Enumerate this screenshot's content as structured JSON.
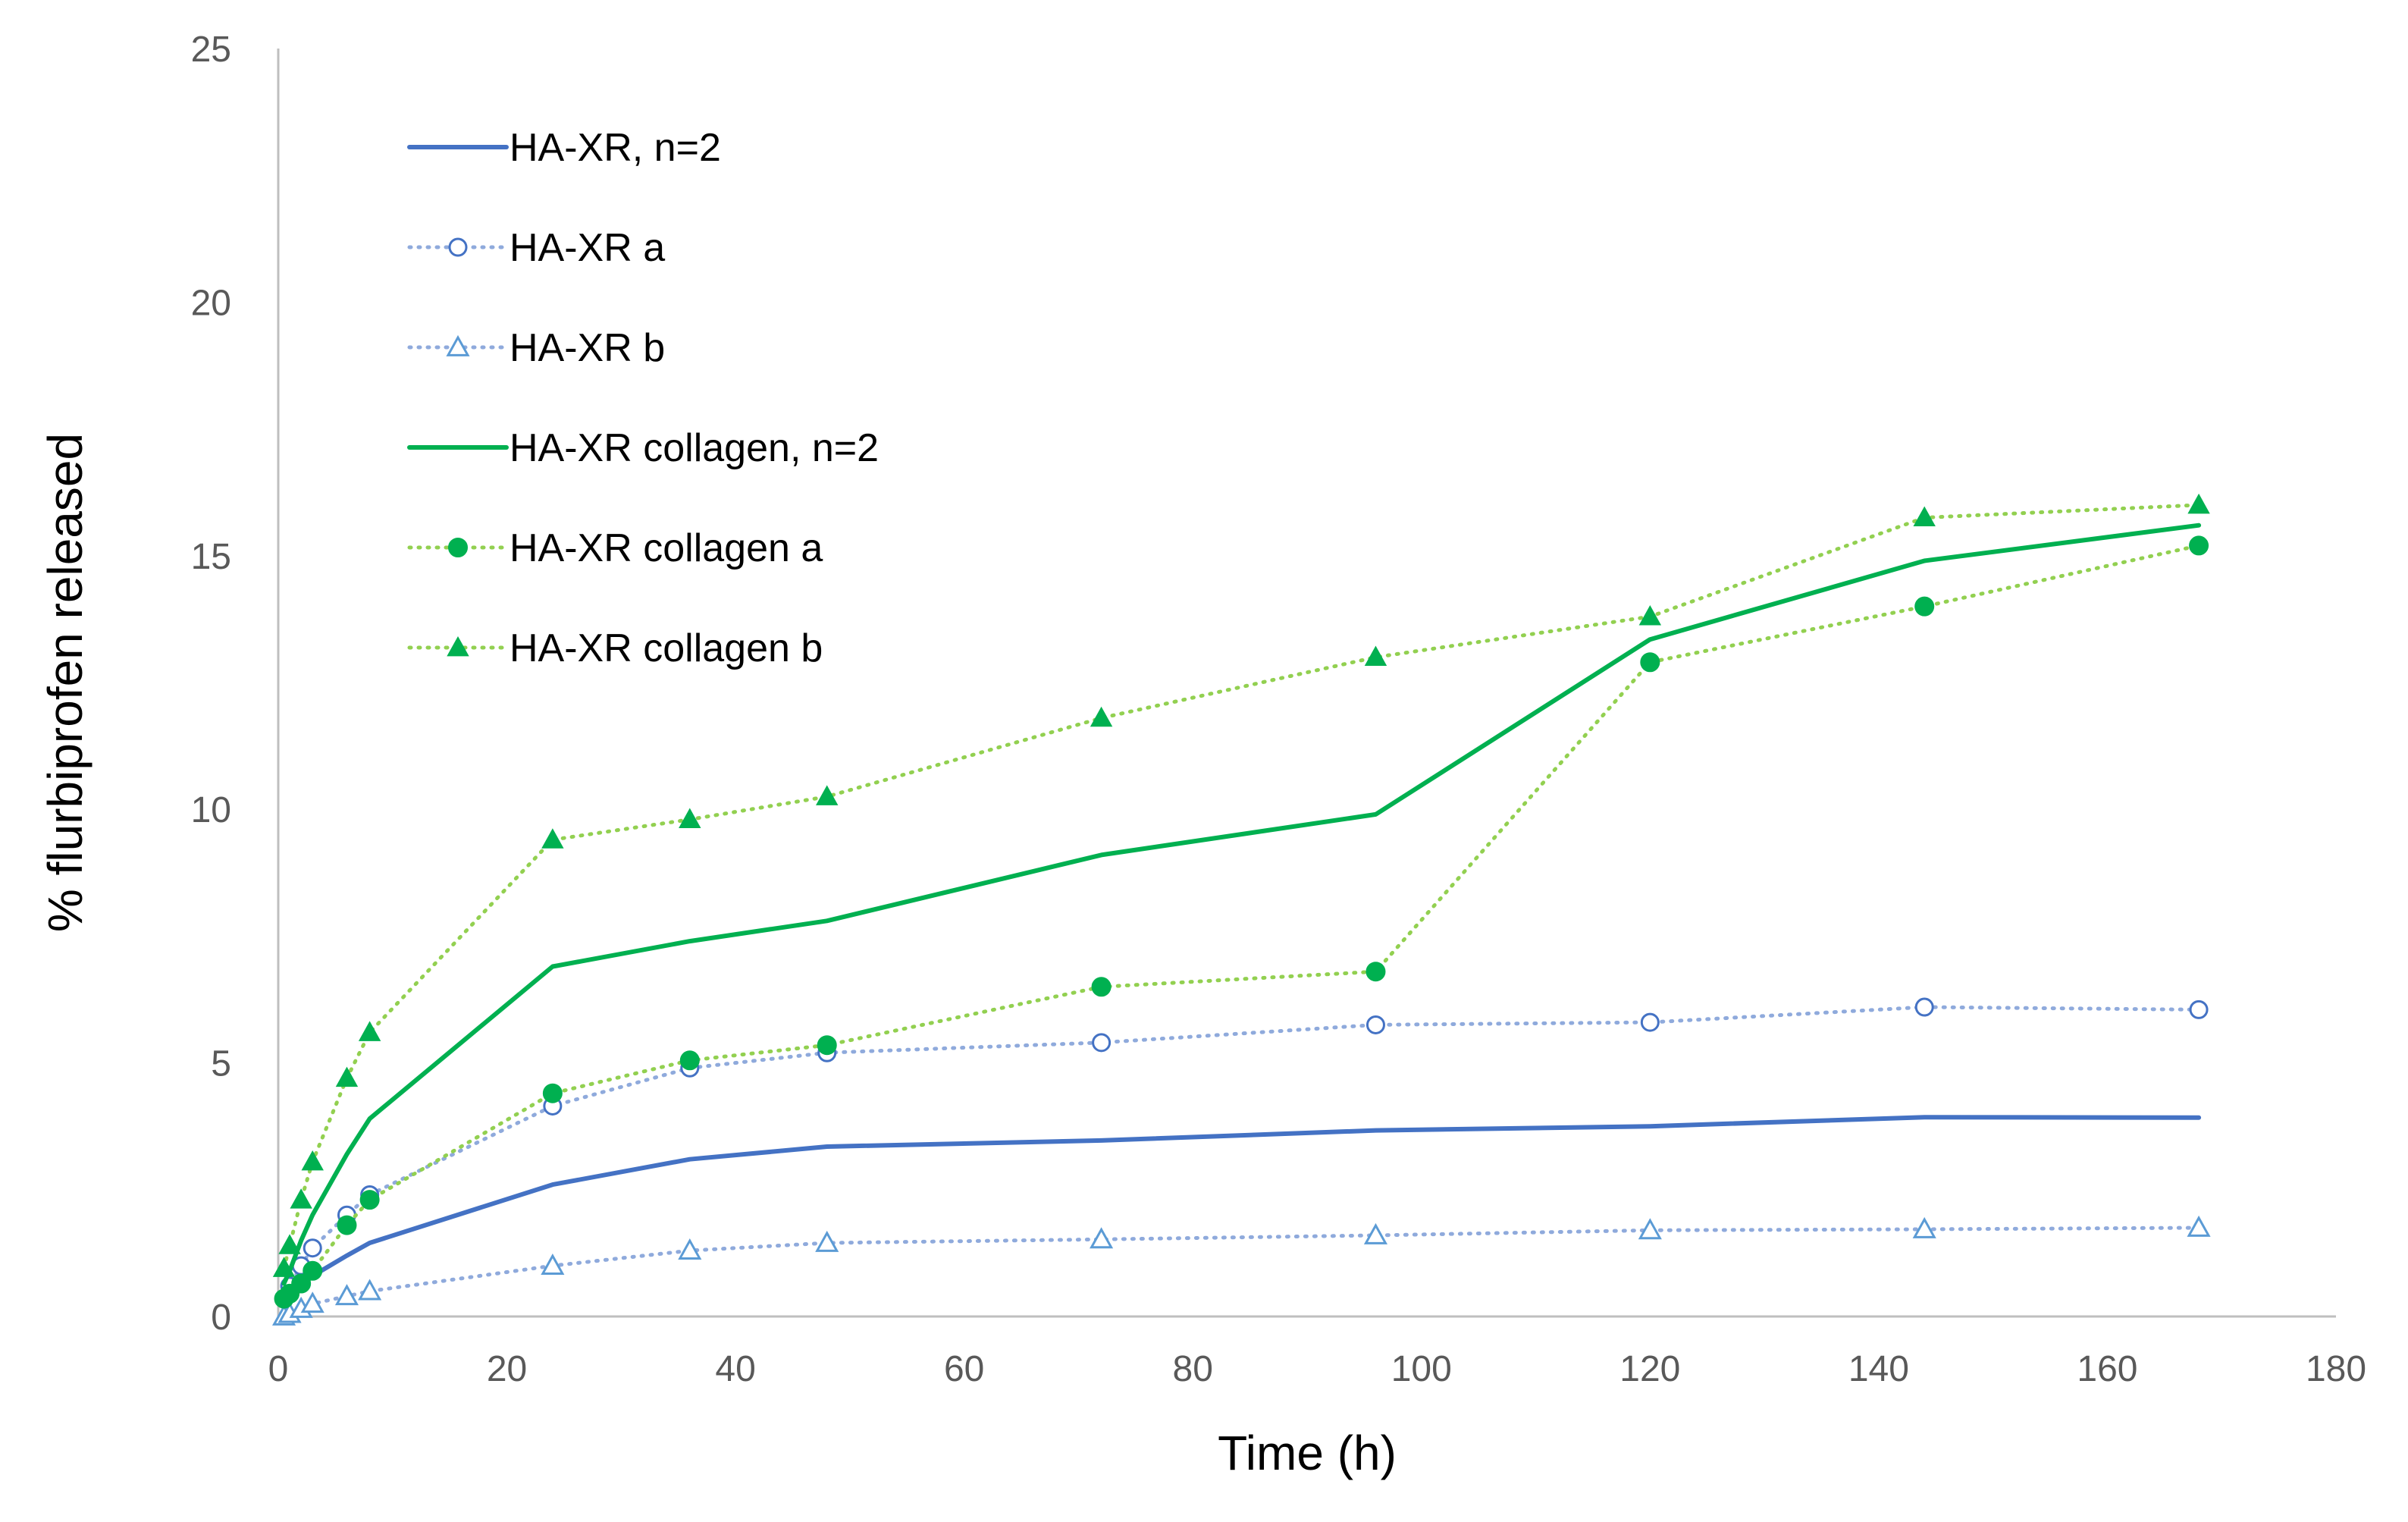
{
  "chart_data": {
    "type": "line",
    "xlabel": "Time (h)",
    "ylabel": "% flurbiprofen released",
    "xlim": [
      0,
      180
    ],
    "ylim": [
      0,
      25
    ],
    "x_ticks": [
      0,
      20,
      40,
      60,
      80,
      100,
      120,
      140,
      160,
      180
    ],
    "y_ticks": [
      0,
      5,
      10,
      15,
      20,
      25
    ],
    "grid": false,
    "legend_position": "top-left",
    "series": [
      {
        "name": "HA-XR, n=2",
        "style": "solid",
        "marker": "none",
        "color": "#4472C4",
        "x": [
          0.5,
          1,
          2,
          3,
          6,
          8,
          24,
          36,
          48,
          72,
          96,
          120,
          144,
          168
        ],
        "y": [
          0.2,
          0.4,
          0.6,
          0.8,
          1.2,
          1.45,
          2.6,
          3.1,
          3.35,
          3.47,
          3.67,
          3.75,
          3.93,
          3.92
        ]
      },
      {
        "name": "HA-XR a",
        "style": "dotted",
        "marker": "circle-open",
        "color": "#8FAADC",
        "marker_color": "#4472C4",
        "x": [
          0.5,
          1,
          2,
          3,
          6,
          8,
          24,
          36,
          48,
          72,
          96,
          120,
          144,
          168
        ],
        "y": [
          0.35,
          0.6,
          1.0,
          1.35,
          2.0,
          2.4,
          4.15,
          4.9,
          5.2,
          5.4,
          5.75,
          5.8,
          6.1,
          6.05
        ]
      },
      {
        "name": "HA-XR b",
        "style": "dotted",
        "marker": "triangle-open",
        "color": "#8FAADC",
        "marker_color": "#5B9BD5",
        "x": [
          0.5,
          1,
          2,
          3,
          6,
          8,
          24,
          36,
          48,
          72,
          96,
          120,
          144,
          168
        ],
        "y": [
          0.0,
          0.05,
          0.15,
          0.25,
          0.4,
          0.5,
          1.0,
          1.3,
          1.45,
          1.52,
          1.6,
          1.7,
          1.72,
          1.75
        ]
      },
      {
        "name": "HA-XR collagen, n=2",
        "style": "solid",
        "marker": "none",
        "color": "#00B050",
        "x": [
          0.5,
          1,
          2,
          3,
          6,
          8,
          24,
          36,
          48,
          72,
          96,
          120,
          144,
          168
        ],
        "y": [
          0.65,
          0.9,
          1.5,
          2.0,
          3.2,
          3.9,
          6.9,
          7.4,
          7.8,
          9.1,
          9.9,
          13.35,
          14.9,
          15.6
        ]
      },
      {
        "name": "HA-XR collagen a",
        "style": "dotted",
        "marker": "circle-filled",
        "color": "#92D050",
        "marker_color": "#00B050",
        "x": [
          0.5,
          1,
          2,
          3,
          6,
          8,
          24,
          36,
          48,
          72,
          96,
          120,
          144,
          168
        ],
        "y": [
          0.35,
          0.45,
          0.65,
          0.9,
          1.8,
          2.3,
          4.4,
          5.05,
          5.35,
          6.5,
          6.8,
          12.9,
          14.0,
          15.2
        ]
      },
      {
        "name": "HA-XR collagen b",
        "style": "dotted",
        "marker": "triangle-filled",
        "color": "#92D050",
        "marker_color": "#00B050",
        "x": [
          0.5,
          1,
          2,
          3,
          6,
          8,
          24,
          36,
          48,
          72,
          96,
          120,
          144,
          168
        ],
        "y": [
          0.95,
          1.4,
          2.3,
          3.05,
          4.7,
          5.6,
          9.4,
          9.8,
          10.25,
          11.8,
          13.0,
          13.8,
          15.75,
          16.0
        ]
      }
    ]
  }
}
